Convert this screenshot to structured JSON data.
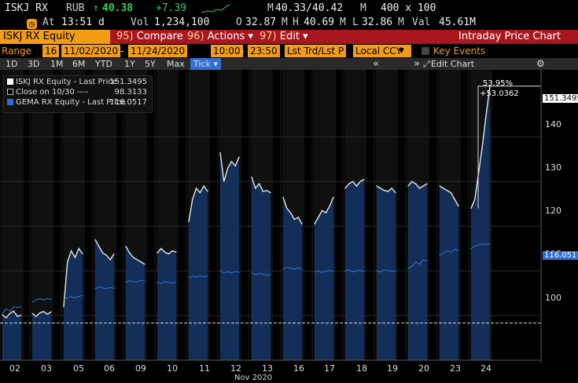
{
  "ticker": {
    "symbol": "ISKJ RX",
    "currency": "RUB",
    "arrow": "↑",
    "last": "40.38",
    "change": "+7.39",
    "bid_ask_prefix": "M",
    "bid_ask": "40.33/40.42",
    "bid_ask_suffix": "M",
    "size": "400 x 100",
    "time_label": "At",
    "time": "13:51 d",
    "vol_label": "Vol",
    "vol": "1,234,100",
    "open_label": "O",
    "open": "32.87",
    "open_suffix": "M",
    "high_label": "H",
    "high": "40.69",
    "high_suffix": "M",
    "low_label": "L",
    "low": "32.86",
    "low_suffix": "M",
    "val_label": "Val",
    "val": "45.61M"
  },
  "funcbar": {
    "security": "ISKJ RX Equity",
    "compare_num": "95)",
    "compare": "Compare",
    "actions_num": "96)",
    "actions": "Actions",
    "edit_num": "97)",
    "edit": "Edit",
    "caret": "▾",
    "title": "Intraday Price Chart"
  },
  "rangebar": {
    "range_label": "Range",
    "range_days": "16",
    "start_date": "11/02/2020",
    "dash": "-",
    "end_date": "11/24/2020",
    "start_time": "10:00",
    "end_time": "23:50",
    "price_type": "Lst Trd/Lst P",
    "currency": "Local CCY",
    "key_events": "Key Events"
  },
  "periodbar": {
    "periods": [
      "1D",
      "3D",
      "1M",
      "6M",
      "YTD",
      "1Y",
      "5Y",
      "Max"
    ],
    "tick": "Tick ▾",
    "collapse_left": "«",
    "collapse_right": "»",
    "edit_chart": "Edit Chart",
    "gear": "⚙"
  },
  "legend": {
    "items": [
      {
        "label": "ISKJ RX Equity - Last Price",
        "value": "151.3495"
      },
      {
        "label": "Close on 10/30 ----",
        "value": "98.3133"
      },
      {
        "label": "GEMA RX Equity - Last Price",
        "value": "116.0517"
      }
    ]
  },
  "annotation": {
    "pct": "53.95%",
    "abs": "+53.0362"
  },
  "chart_data": {
    "type": "line",
    "title": "Intraday Price Chart",
    "xlabel": "Nov 2020",
    "ylabel": "",
    "ylim": [
      90,
      155
    ],
    "ytick_labels": [
      "100",
      "110",
      "120",
      "130",
      "140"
    ],
    "categories": [
      "02",
      "03",
      "05",
      "06",
      "09",
      "10",
      "11",
      "12",
      "13",
      "16",
      "17",
      "18",
      "19",
      "20",
      "23",
      "24"
    ],
    "reference_line": {
      "name": "Close on 10/30",
      "value": 98.3133
    },
    "last_labels": {
      "ISKJ": "151.3495",
      "GEMA": "116.0517"
    },
    "series": [
      {
        "name": "ISKJ RX Equity - Last Price",
        "color": "#e6e6e6",
        "values": [
          [
            100.2,
            99.5,
            100.5,
            101.0,
            99.8,
            100.1
          ],
          [
            100.5,
            99.8,
            100.6,
            100.9,
            100.3,
            100.8
          ],
          [
            102.0,
            112.0,
            114.5,
            113.0,
            115.0,
            113.8
          ],
          [
            117.0,
            115.5,
            114.0,
            113.5,
            112.5,
            113.8
          ],
          [
            115.5,
            114.0,
            113.0,
            112.5,
            112.0,
            111.5
          ],
          [
            114.0,
            115.0,
            114.2,
            113.8,
            114.5,
            114.2
          ],
          [
            121.0,
            126.0,
            128.5,
            127.5,
            129.0,
            127.8
          ],
          [
            136.5,
            130.0,
            133.0,
            134.5,
            133.5,
            135.5
          ],
          [
            131.0,
            128.5,
            129.5,
            127.8,
            128.0,
            127.5
          ],
          [
            126.5,
            124.0,
            123.0,
            121.5,
            122.0,
            120.5
          ],
          [
            120.5,
            122.0,
            123.5,
            123.0,
            124.5,
            126.5
          ],
          [
            128.5,
            129.5,
            130.0,
            129.0,
            130.0,
            130.5
          ],
          [
            129.0,
            128.5,
            128.0,
            127.8,
            128.5,
            127.5
          ],
          [
            129.0,
            130.0,
            129.5,
            128.5,
            129.0,
            129.5
          ],
          [
            129.0,
            128.5,
            128.0,
            127.5,
            126.0,
            124.5
          ],
          [
            124.0,
            126.0,
            132.0,
            138.0,
            145.0,
            151.3495
          ]
        ]
      },
      {
        "name": "GEMA RX Equity - Last Price",
        "color": "#2f6fd6",
        "values": [
          [
            100.5,
            101.5,
            101.0,
            102.0,
            101.8,
            102.0
          ],
          [
            103.0,
            103.5,
            103.8,
            103.5,
            103.8,
            103.6
          ],
          [
            103.5,
            104.0,
            104.2,
            104.0,
            104.3,
            104.5
          ],
          [
            106.0,
            106.5,
            106.2,
            106.0,
            106.3,
            106.1
          ],
          [
            107.5,
            107.8,
            107.6,
            107.5,
            107.9,
            107.7
          ],
          [
            107.5,
            107.2,
            107.6,
            107.4,
            107.3,
            107.5
          ],
          [
            108.5,
            108.8,
            108.6,
            108.9,
            108.7,
            108.8
          ],
          [
            110.0,
            109.6,
            109.8,
            109.5,
            109.9,
            109.7
          ],
          [
            109.5,
            109.2,
            109.4,
            109.3,
            109.0,
            109.2
          ],
          [
            110.5,
            110.8,
            110.6,
            110.4,
            110.7,
            110.5
          ],
          [
            109.8,
            110.0,
            109.7,
            109.9,
            110.1,
            109.8
          ],
          [
            109.9,
            110.2,
            109.8,
            110.0,
            110.1,
            109.9
          ],
          [
            110.0,
            109.8,
            110.2,
            110.1,
            109.9,
            110.0
          ],
          [
            110.5,
            111.0,
            112.0,
            111.5,
            112.5,
            112.2
          ],
          [
            113.5,
            114.0,
            114.5,
            114.2,
            114.8,
            114.6
          ],
          [
            115.0,
            115.5,
            115.8,
            116.0,
            116.0,
            116.0517
          ]
        ]
      }
    ]
  },
  "colors": {
    "accent": "#f29d16",
    "funcbar": "#a8171d",
    "up": "#2fd15a",
    "series_blue": "#2f6fd6",
    "fill_blue": "#14325e",
    "session_band": "#101010"
  }
}
